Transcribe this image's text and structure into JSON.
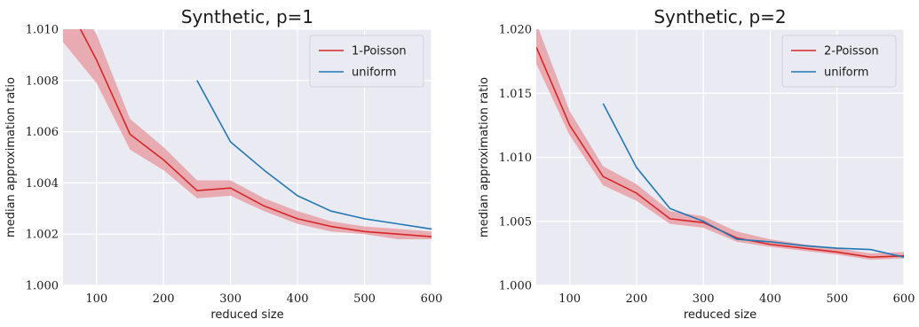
{
  "colors": {
    "plot_background": "#eaeaf2",
    "grid": "#ffffff",
    "poisson": "#d62728",
    "poisson_band": "#e8a0a6",
    "uniform": "#1f77b4"
  },
  "chart_data": [
    {
      "type": "line",
      "title": "Synthetic, p=1",
      "xlabel": "reduced size",
      "ylabel": "median approximation ratio",
      "xlim": [
        50,
        600
      ],
      "ylim": [
        1.0,
        1.01
      ],
      "x_ticks": [
        100,
        200,
        300,
        400,
        500,
        600
      ],
      "x_tick_labels": [
        "100",
        "200",
        "300",
        "400",
        "500",
        "600"
      ],
      "y_ticks": [
        1.0,
        1.002,
        1.004,
        1.006,
        1.008,
        1.01
      ],
      "y_tick_labels": [
        "1.000",
        "1.002",
        "1.004",
        "1.006",
        "1.008",
        "1.010"
      ],
      "grid": true,
      "legend_position": "top-right",
      "series": [
        {
          "name": "1-Poisson",
          "color_key": "poisson",
          "x": [
            50,
            100,
            150,
            200,
            250,
            300,
            350,
            400,
            450,
            500,
            550,
            600
          ],
          "values": [
            1.0113,
            1.0088,
            1.0059,
            1.0049,
            1.0037,
            1.0038,
            1.0031,
            1.0026,
            1.0023,
            1.0021,
            1.002,
            1.0019
          ],
          "lower": [
            1.0095,
            1.0079,
            1.0053,
            1.0045,
            1.0034,
            1.0035,
            1.0029,
            1.0024,
            1.0021,
            1.002,
            1.0018,
            1.0018
          ],
          "upper": [
            1.0118,
            1.0098,
            1.0065,
            1.0054,
            1.0041,
            1.0041,
            1.0034,
            1.0029,
            1.0025,
            1.0023,
            1.0022,
            1.0021
          ]
        },
        {
          "name": "uniform",
          "color_key": "uniform",
          "x": [
            250,
            300,
            350,
            400,
            450,
            500,
            550,
            600
          ],
          "values": [
            1.008,
            1.0056,
            1.0045,
            1.0035,
            1.0029,
            1.0026,
            1.0024,
            1.0022
          ]
        }
      ]
    },
    {
      "type": "line",
      "title": "Synthetic, p=2",
      "xlabel": "reduced size",
      "ylabel": "median approximation ratio",
      "xlim": [
        50,
        600
      ],
      "ylim": [
        1.0,
        1.02
      ],
      "x_ticks": [
        100,
        200,
        300,
        400,
        500,
        600
      ],
      "x_tick_labels": [
        "100",
        "200",
        "300",
        "400",
        "500",
        "600"
      ],
      "y_ticks": [
        1.0,
        1.005,
        1.01,
        1.015,
        1.02
      ],
      "y_tick_labels": [
        "1.000",
        "1.005",
        "1.010",
        "1.015",
        "1.020"
      ],
      "grid": true,
      "legend_position": "top-right",
      "series": [
        {
          "name": "2-Poisson",
          "color_key": "poisson",
          "x": [
            50,
            100,
            150,
            200,
            250,
            300,
            350,
            400,
            450,
            500,
            550,
            600
          ],
          "values": [
            1.0186,
            1.0125,
            1.0085,
            1.0072,
            1.0052,
            1.0049,
            1.0037,
            1.0032,
            1.0029,
            1.0026,
            1.0022,
            1.0023
          ],
          "lower": [
            1.0173,
            1.0117,
            1.0078,
            1.0066,
            1.0048,
            1.0045,
            1.0034,
            1.003,
            1.0027,
            1.0024,
            1.002,
            1.0021
          ],
          "upper": [
            1.0205,
            1.0136,
            1.0093,
            1.0079,
            1.0058,
            1.0054,
            1.0042,
            1.0036,
            1.0032,
            1.0029,
            1.0025,
            1.0026
          ]
        },
        {
          "name": "uniform",
          "color_key": "uniform",
          "x": [
            150,
            200,
            250,
            300,
            350,
            400,
            450,
            500,
            550,
            600
          ],
          "values": [
            1.0142,
            1.0092,
            1.006,
            1.005,
            1.0036,
            1.0034,
            1.0031,
            1.0029,
            1.0028,
            1.0022
          ]
        }
      ]
    }
  ]
}
